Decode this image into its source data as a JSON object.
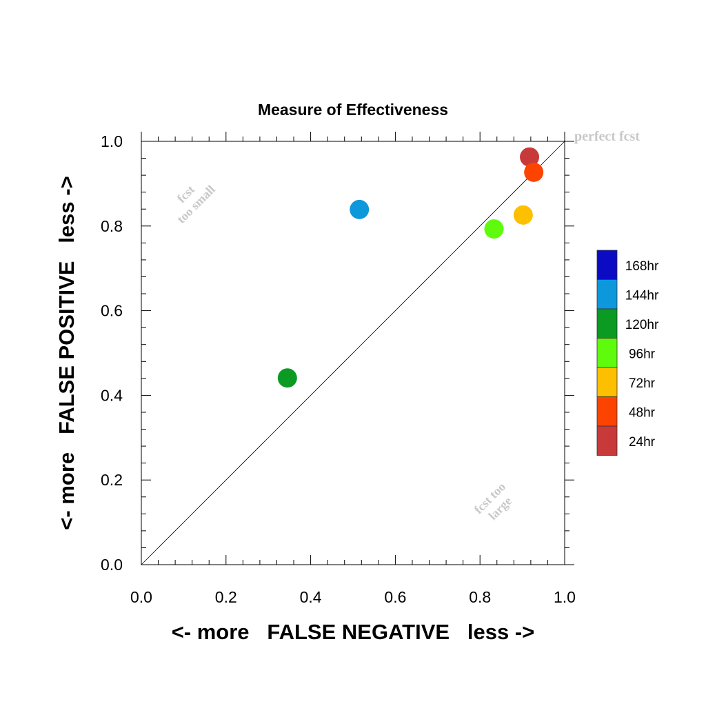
{
  "chart_data": {
    "type": "scatter",
    "title": "Measure of Effectiveness",
    "xlabel": "<- more   FALSE NEGATIVE   less ->",
    "ylabel": "<- more   FALSE POSITIVE   less ->",
    "xlim": [
      0,
      1
    ],
    "ylim": [
      0,
      1
    ],
    "xticks": [
      "0.0",
      "0.2",
      "0.4",
      "0.6",
      "0.8",
      "1.0"
    ],
    "yticks": [
      "0.0",
      "0.2",
      "0.4",
      "0.6",
      "0.8",
      "1.0"
    ],
    "diagonal_line": true,
    "annotations": {
      "perfect": "perfect fcst",
      "small_line1": "fcst",
      "small_line2": "too small",
      "large_line1": "fcst too",
      "large_line2": "large"
    },
    "legend_placement": "right",
    "legend": [
      {
        "label": "168hr",
        "color": "#0b0bc4"
      },
      {
        "label": "144hr",
        "color": "#0d98dc"
      },
      {
        "label": "120hr",
        "color": "#0b9a22"
      },
      {
        "label": "96hr",
        "color": "#5efc0c"
      },
      {
        "label": "72hr",
        "color": "#fcc000"
      },
      {
        "label": "48hr",
        "color": "#fc4400"
      },
      {
        "label": "24hr",
        "color": "#c83a3a"
      }
    ],
    "points": [
      {
        "lead": "24hr",
        "x": 0.917,
        "y": 0.963,
        "color": "#c83a3a"
      },
      {
        "lead": "48hr",
        "x": 0.927,
        "y": 0.927,
        "color": "#fc4400"
      },
      {
        "lead": "72hr",
        "x": 0.902,
        "y": 0.826,
        "color": "#fcc000"
      },
      {
        "lead": "96hr",
        "x": 0.833,
        "y": 0.793,
        "color": "#5efc0c"
      },
      {
        "lead": "120hr",
        "x": 0.345,
        "y": 0.441,
        "color": "#0b9a22"
      },
      {
        "lead": "144hr",
        "x": 0.515,
        "y": 0.839,
        "color": "#0d98dc"
      }
    ]
  }
}
